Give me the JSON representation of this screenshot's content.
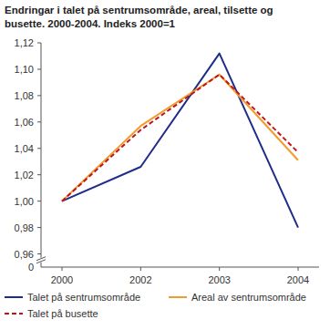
{
  "chart_data": {
    "type": "line",
    "title": [
      "Endringar i talet på sentrumsområde, areal, tilsette og",
      "busette. 2000-2004. Indeks 2000=1"
    ],
    "categories": [
      "2000",
      "2002",
      "2003",
      "2004"
    ],
    "series": [
      {
        "name": "Talet på sentrumsområde",
        "color": "#1f2d8a",
        "line_style": "solid",
        "values": [
          1.0,
          1.026,
          1.112,
          0.98
        ]
      },
      {
        "name": "Areal av sentrumsområde",
        "color": "#f39c2b",
        "line_style": "solid",
        "values": [
          1.0,
          1.057,
          1.096,
          1.031
        ]
      },
      {
        "name": "Talet på busette",
        "color": "#c0141c",
        "line_style": "dashed",
        "values": [
          1.0,
          1.054,
          1.096,
          1.037
        ]
      }
    ],
    "ylim": [
      0.95,
      1.12
    ],
    "yticks": [
      {
        "value": 0.96,
        "label": "0,96"
      },
      {
        "value": 0.98,
        "label": "0,98"
      },
      {
        "value": 1.0,
        "label": "1,00"
      },
      {
        "value": 1.02,
        "label": "1,02"
      },
      {
        "value": 1.04,
        "label": "1,04"
      },
      {
        "value": 1.06,
        "label": "1,06"
      },
      {
        "value": 1.08,
        "label": "1,08"
      },
      {
        "value": 1.1,
        "label": "1,10"
      },
      {
        "value": 1.12,
        "label": "1,12"
      }
    ],
    "annotations": [
      "0"
    ],
    "grid": false,
    "legend": "bottom"
  }
}
